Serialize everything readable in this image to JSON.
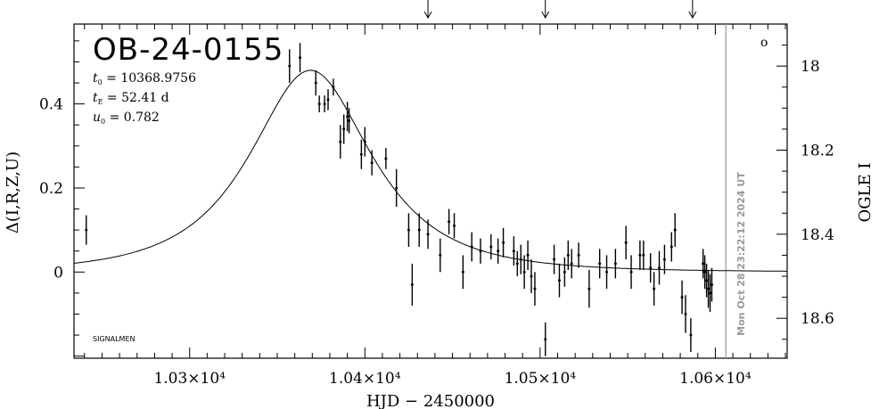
{
  "chart_data": {
    "type": "scatter",
    "title": "OB-24-0155",
    "params": {
      "t0": {
        "symbol": "t",
        "sub": "0",
        "text": " = 10368.9756"
      },
      "tE": {
        "symbol": "t",
        "sub": "E",
        "text": " = 52.41 d"
      },
      "u0": {
        "symbol": "u",
        "sub": "0",
        "text": " = 0.782"
      }
    },
    "credit": "SIGNALMEN",
    "timestamp": "Mon Oct 28 23:22:12 2024 UT",
    "corner_mark": "o",
    "xlabel": "HJD − 2450000",
    "ylabel_left": "Δ(I,R,Z,U)",
    "ylabel_right": "OGLE I",
    "xlim": [
      10234,
      10641
    ],
    "ylim": [
      -0.205,
      0.59
    ],
    "right_ylim": [
      18.695,
      17.9
    ],
    "x_ticks": [
      {
        "value": 10300,
        "label": "1.03×10⁴"
      },
      {
        "value": 10400,
        "label": "1.04×10⁴"
      },
      {
        "value": 10500,
        "label": "1.05×10⁴"
      },
      {
        "value": 10600,
        "label": "1.06×10⁴"
      }
    ],
    "y_ticks_left": [
      {
        "value": 0,
        "label": "0"
      },
      {
        "value": 0.2,
        "label": "0.2"
      },
      {
        "value": 0.4,
        "label": "0.4"
      }
    ],
    "y_ticks_right": [
      {
        "value": 18.0,
        "label": "18"
      },
      {
        "value": 18.2,
        "label": "18.2"
      },
      {
        "value": 18.4,
        "label": "18.4"
      },
      {
        "value": 18.6,
        "label": "18.6"
      }
    ],
    "arrows_x": [
      10436,
      10503,
      10587
    ],
    "now_line_x": 10606,
    "model": {
      "t0": 10368.9756,
      "tE": 52.41,
      "u0": 0.782
    },
    "points": [
      [
        10241,
        0.1,
        0.035
      ],
      [
        10357,
        0.49,
        0.04
      ],
      [
        10363,
        0.51,
        0.035
      ],
      [
        10372,
        0.45,
        0.03
      ],
      [
        10374,
        0.4,
        0.02
      ],
      [
        10377,
        0.4,
        0.02
      ],
      [
        10379,
        0.41,
        0.025
      ],
      [
        10382,
        0.44,
        0.02
      ],
      [
        10386,
        0.31,
        0.04
      ],
      [
        10388,
        0.34,
        0.035
      ],
      [
        10390,
        0.37,
        0.035
      ],
      [
        10391,
        0.36,
        0.03
      ],
      [
        10398,
        0.28,
        0.035
      ],
      [
        10400,
        0.31,
        0.035
      ],
      [
        10404,
        0.26,
        0.03
      ],
      [
        10412,
        0.27,
        0.025
      ],
      [
        10418,
        0.2,
        0.045
      ],
      [
        10425,
        0.1,
        0.04
      ],
      [
        10427,
        -0.03,
        0.05
      ],
      [
        10431,
        0.1,
        0.04
      ],
      [
        10436,
        0.09,
        0.035
      ],
      [
        10443,
        0.04,
        0.04
      ],
      [
        10448,
        0.12,
        0.03
      ],
      [
        10451,
        0.11,
        0.03
      ],
      [
        10456,
        0.0,
        0.04
      ],
      [
        10461,
        0.06,
        0.035
      ],
      [
        10466,
        0.05,
        0.03
      ],
      [
        10472,
        0.06,
        0.03
      ],
      [
        10476,
        0.05,
        0.03
      ],
      [
        10479,
        0.07,
        0.035
      ],
      [
        10485,
        0.05,
        0.035
      ],
      [
        10487,
        0.02,
        0.03
      ],
      [
        10489,
        0.03,
        0.035
      ],
      [
        10491,
        0.0,
        0.04
      ],
      [
        10493,
        0.04,
        0.035
      ],
      [
        10495,
        -0.01,
        0.04
      ],
      [
        10497,
        -0.04,
        0.04
      ],
      [
        10503,
        -0.16,
        0.04
      ],
      [
        10508,
        0.03,
        0.035
      ],
      [
        10511,
        -0.02,
        0.04
      ],
      [
        10514,
        0.0,
        0.035
      ],
      [
        10516,
        0.04,
        0.035
      ],
      [
        10518,
        0.02,
        0.035
      ],
      [
        10522,
        0.04,
        0.03
      ],
      [
        10528,
        -0.04,
        0.045
      ],
      [
        10534,
        0.02,
        0.035
      ],
      [
        10538,
        0.0,
        0.04
      ],
      [
        10543,
        0.02,
        0.035
      ],
      [
        10549,
        0.07,
        0.04
      ],
      [
        10552,
        0.0,
        0.04
      ],
      [
        10557,
        0.04,
        0.035
      ],
      [
        10559,
        0.04,
        0.035
      ],
      [
        10563,
        0.01,
        0.035
      ],
      [
        10565,
        -0.04,
        0.04
      ],
      [
        10568,
        0.01,
        0.04
      ],
      [
        10571,
        0.03,
        0.035
      ],
      [
        10575,
        0.06,
        0.035
      ],
      [
        10577,
        0.1,
        0.04
      ],
      [
        10581,
        -0.06,
        0.04
      ],
      [
        10583,
        -0.1,
        0.045
      ],
      [
        10586,
        -0.15,
        0.04
      ],
      [
        10593,
        0.02,
        0.035
      ],
      [
        10594,
        0.0,
        0.04
      ],
      [
        10595,
        -0.02,
        0.04
      ],
      [
        10596,
        -0.04,
        0.045
      ],
      [
        10597,
        -0.05,
        0.045
      ],
      [
        10598,
        -0.03,
        0.04
      ]
    ]
  }
}
